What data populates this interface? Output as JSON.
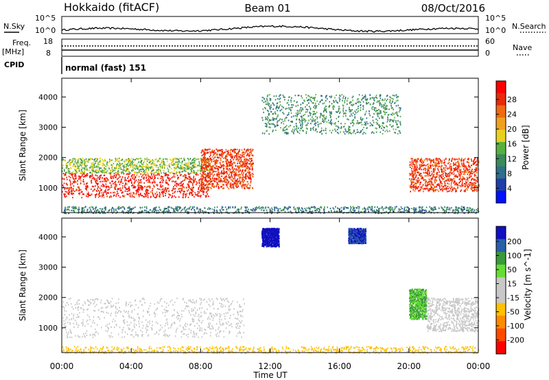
{
  "header": {
    "left_title": "Hokkaido (fitACF)",
    "center_title": "Beam 01",
    "date": "08/Oct/2016"
  },
  "noise_panel": {
    "left_label": "N.Sky",
    "right_label": "N.Search",
    "left_ticks": [
      "10^5",
      "10^0"
    ],
    "right_ticks": [
      "10^5",
      "10^0"
    ]
  },
  "freq_panel": {
    "left_label_line1": "Freq.",
    "left_label_line2": "[MHz]",
    "right_label": "Nave",
    "left_ticks": [
      "18",
      "8"
    ],
    "right_ticks": [
      "60",
      "0"
    ]
  },
  "cpid_panel": {
    "label": "CPID",
    "value": "normal (fast) 151"
  },
  "colors": {
    "power_scale": [
      "#0010ff",
      "#1e3ea8",
      "#2e6f8a",
      "#3b8a5a",
      "#58b040",
      "#e8d020",
      "#f0a020",
      "#f06a10",
      "#e82a0a",
      "#ff0000"
    ],
    "velocity_scale": [
      "#ff0000",
      "#ff4a00",
      "#ff8a00",
      "#ffc000",
      "#c8c8c8",
      "#c8c8c8",
      "#66dd33",
      "#3a9a3a",
      "#2a5fa8",
      "#1010c0"
    ]
  },
  "chart_data": [
    {
      "type": "heatmap",
      "title": "",
      "xlabel": "",
      "ylabel": "Slant Range [km]",
      "colorbar_label": "Power [dB]",
      "colorbar_ticks": [
        "28",
        "24",
        "20",
        "16",
        "12",
        "8",
        "4"
      ],
      "x_ticks": [
        "00:00",
        "04:00",
        "08:00",
        "12:00",
        "16:00",
        "20:00",
        "00:00"
      ],
      "y_ticks": [
        "4000",
        "3000",
        "2000",
        "1000"
      ],
      "xlim_hours": [
        0,
        24
      ],
      "ylim_km": [
        180,
        4620
      ],
      "regions": [
        {
          "hour_start": 0,
          "hour_end": 8.5,
          "range_start_km": 700,
          "range_end_km": 1500,
          "power_db": 28
        },
        {
          "hour_start": 0,
          "hour_end": 8.5,
          "range_start_km": 1500,
          "range_end_km": 2000,
          "power_db": 14
        },
        {
          "hour_start": 8.0,
          "hour_end": 11.0,
          "range_start_km": 1000,
          "range_end_km": 2300,
          "power_db": 26
        },
        {
          "hour_start": 11.5,
          "hour_end": 19.5,
          "range_start_km": 2800,
          "range_end_km": 4100,
          "power_db": 10
        },
        {
          "hour_start": 20.0,
          "hour_end": 24.0,
          "range_start_km": 900,
          "range_end_km": 2000,
          "power_db": 26
        },
        {
          "hour_start": 0,
          "hour_end": 24.0,
          "range_start_km": 180,
          "range_end_km": 400,
          "power_db": 8
        }
      ]
    },
    {
      "type": "heatmap",
      "title": "",
      "xlabel": "Time UT",
      "ylabel": "Slant Range [km]",
      "colorbar_label": "Velocity [m s^-1]",
      "colorbar_ticks": [
        "200",
        "100",
        "50",
        "15",
        "-15",
        "-50",
        "-100",
        "-200"
      ],
      "x_ticks": [
        "00:00",
        "04:00",
        "08:00",
        "12:00",
        "16:00",
        "20:00",
        "00:00"
      ],
      "y_ticks": [
        "4000",
        "3000",
        "2000",
        "1000"
      ],
      "xlim_hours": [
        0,
        24
      ],
      "ylim_km": [
        180,
        4620
      ],
      "regions": [
        {
          "hour_start": 0,
          "hour_end": 10.5,
          "range_start_km": 700,
          "range_end_km": 2000,
          "velocity_ms": 0
        },
        {
          "hour_start": 11.5,
          "hour_end": 12.5,
          "range_start_km": 3700,
          "range_end_km": 4300,
          "velocity_ms": 200
        },
        {
          "hour_start": 16.5,
          "hour_end": 17.5,
          "range_start_km": 3800,
          "range_end_km": 4300,
          "velocity_ms": 150
        },
        {
          "hour_start": 20.0,
          "hour_end": 21.0,
          "range_start_km": 1300,
          "range_end_km": 2300,
          "velocity_ms": 30
        },
        {
          "hour_start": 21.0,
          "hour_end": 24.0,
          "range_start_km": 900,
          "range_end_km": 2000,
          "velocity_ms": 0
        },
        {
          "hour_start": 0,
          "hour_end": 24.0,
          "range_start_km": 180,
          "range_end_km": 400,
          "velocity_ms": -30
        }
      ]
    }
  ]
}
